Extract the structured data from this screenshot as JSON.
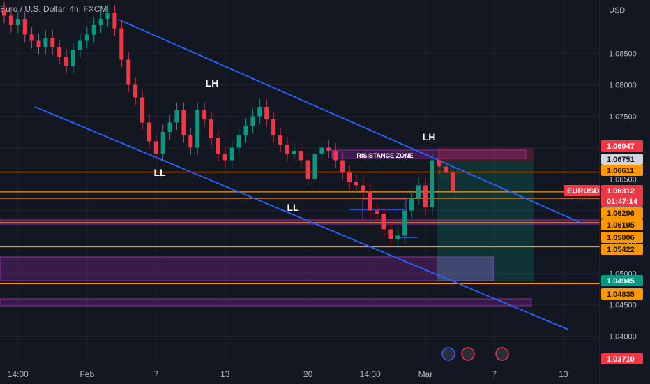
{
  "header": {
    "symbol_title": "Euro / U.S. Dollar, 4h, FXCM"
  },
  "chart_data": {
    "type": "candlestick",
    "currency": "USD",
    "ylim": [
      1.0355,
      1.0935
    ],
    "y_ticks": [
      1.085,
      1.08,
      1.075,
      1.07,
      1.065,
      1.06,
      1.055,
      1.05,
      1.045,
      1.04
    ],
    "x_ticks": [
      {
        "label": "14:00",
        "i": 2
      },
      {
        "label": "Feb",
        "i": 12
      },
      {
        "label": "7",
        "i": 22
      },
      {
        "label": "13",
        "i": 32
      },
      {
        "label": "20",
        "i": 44
      },
      {
        "label": "14:00",
        "i": 53
      },
      {
        "label": "Mar",
        "i": 61
      },
      {
        "label": "7",
        "i": 71
      },
      {
        "label": "13",
        "i": 81
      }
    ],
    "closes": [
      1.091,
      1.0895,
      1.0905,
      1.088,
      1.087,
      1.086,
      1.0875,
      1.086,
      1.0845,
      1.083,
      1.0855,
      1.087,
      1.088,
      1.0895,
      1.0905,
      1.0915,
      1.089,
      1.084,
      1.08,
      1.078,
      1.074,
      1.071,
      1.069,
      1.0725,
      1.074,
      1.076,
      1.072,
      1.07,
      1.076,
      1.0745,
      1.0715,
      1.069,
      1.068,
      1.07,
      1.072,
      1.0735,
      1.075,
      1.0765,
      1.0745,
      1.072,
      1.0705,
      1.069,
      1.0695,
      1.068,
      1.065,
      1.069,
      1.07,
      1.0695,
      1.068,
      1.066,
      1.0645,
      1.064,
      1.063,
      1.06,
      1.0595,
      1.057,
      1.0555,
      1.056,
      1.06,
      1.062,
      1.064,
      1.0605,
      1.068,
      1.067,
      1.066,
      1.0631
    ],
    "price_labels": [
      {
        "value": "1.06947",
        "color": "#f23645",
        "text_color": "#ffffff"
      },
      {
        "value": "1.06751",
        "color": "#d1d4dc",
        "text_color": "#131722"
      },
      {
        "value": "1.06611",
        "color": "#ff9800",
        "text_color": "#131722"
      },
      {
        "value": "1.06312",
        "color": "#f23645",
        "text_color": "#ffffff"
      },
      {
        "value": "01:47:14",
        "color": "#f23645",
        "text_color": "#ffffff"
      },
      {
        "value": "1.06296",
        "color": "#ff9800",
        "text_color": "#131722"
      },
      {
        "value": "1.06195",
        "color": "#ff9800",
        "text_color": "#131722"
      },
      {
        "value": "1.05806",
        "color": "#ff9800",
        "text_color": "#131722"
      },
      {
        "value": "1.05422",
        "color": "#ff9800",
        "text_color": "#131722"
      },
      {
        "value": "1.04945",
        "color": "#089981",
        "text_color": "#ffffff"
      },
      {
        "value": "1.04835",
        "color": "#ff9800",
        "text_color": "#131722"
      },
      {
        "value": "1.03710",
        "color": "#f23645",
        "text_color": "#ffffff"
      }
    ],
    "symbol_badge": "EURUSD",
    "horizontal_levels": [
      1.06611,
      1.06296,
      1.06195,
      1.05806,
      1.05422,
      1.04835
    ],
    "annotations": [
      {
        "text": "LH"
      },
      {
        "text": "LH"
      },
      {
        "text": "LL"
      },
      {
        "text": "LL"
      },
      {
        "text": "RISISTANCE ZONE"
      }
    ],
    "colors": {
      "up": "#089981",
      "down": "#f23645",
      "channel": "#2962ff",
      "level": "#ff9800",
      "zone": "#9c27b0"
    }
  }
}
